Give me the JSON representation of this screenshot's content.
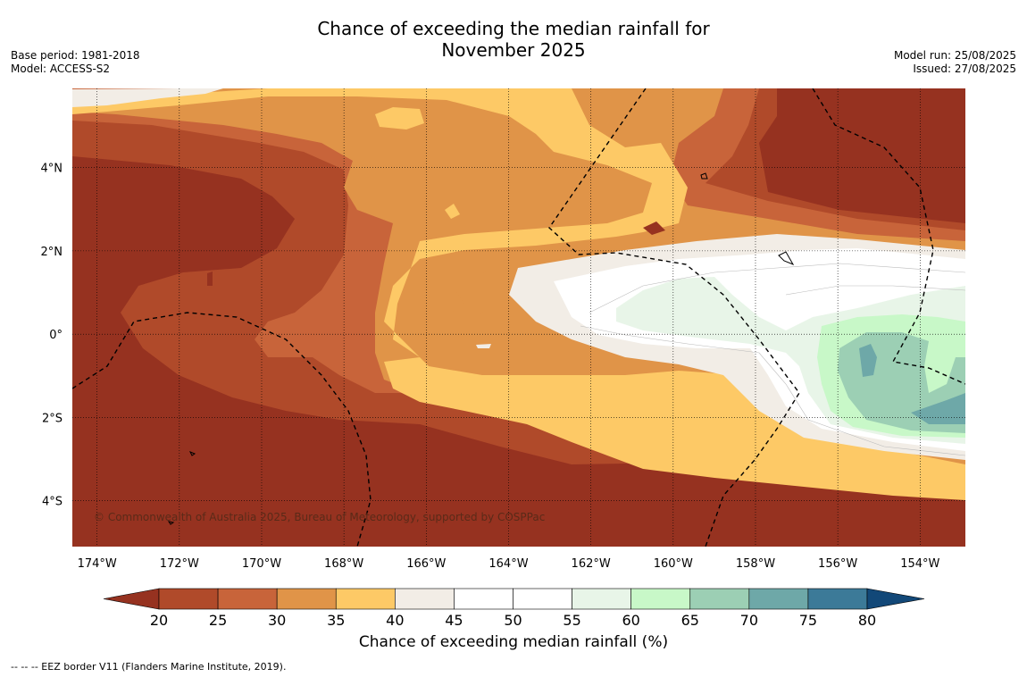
{
  "header": {
    "title_line1": "Chance of exceeding the median rainfall for",
    "title_line2": "November 2025",
    "base_period": "Base period: 1981-2018",
    "model": "Model: ACCESS-S2",
    "model_run": "Model run: 25/08/2025",
    "issued": "Issued: 27/08/2025"
  },
  "map": {
    "lon_ticks": [
      "174°W",
      "172°W",
      "170°W",
      "168°W",
      "166°W",
      "164°W",
      "162°W",
      "160°W",
      "158°W",
      "156°W",
      "154°W"
    ],
    "lat_ticks": [
      "4°N",
      "2°N",
      "0°",
      "2°S",
      "4°S"
    ],
    "credit": "© Commonwealth of Australia 2025, Bureau of Meteorology, supported by COSPPac",
    "lon_range": [
      -174.6,
      -152.9
    ],
    "lat_range": [
      -5.1,
      5.9
    ]
  },
  "colorbar": {
    "ticks": [
      "20",
      "25",
      "30",
      "35",
      "40",
      "45",
      "50",
      "55",
      "60",
      "65",
      "70",
      "75",
      "80"
    ],
    "colors": [
      "#963220",
      "#b04a2a",
      "#c8643a",
      "#e09448",
      "#fdc966",
      "#f2ede6",
      "#ffffff",
      "#ffffff",
      "#e8f5e8",
      "#c8f8c8",
      "#9ccfb4",
      "#6ea8a8",
      "#3c7a98",
      "#124878"
    ],
    "title": "Chance of exceeding median rainfall (%)"
  },
  "footnote": "--  --  -- EEZ border V11 (Flanders Marine Institute, 2019)."
}
